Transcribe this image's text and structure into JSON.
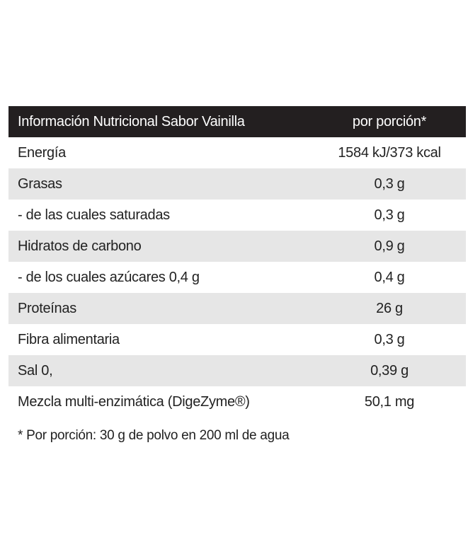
{
  "table": {
    "header": {
      "label": "Información Nutricional Sabor Vainilla",
      "value": "por porción*"
    },
    "rows": [
      {
        "label": "Energía",
        "value": "1584 kJ/373 kcal",
        "shaded": false
      },
      {
        "label": "Grasas",
        "value": "0,3 g",
        "shaded": true
      },
      {
        "label": "- de las cuales saturadas",
        "value": "0,3 g",
        "shaded": false
      },
      {
        "label": "Hidratos de carbono",
        "value": "0,9 g",
        "shaded": true
      },
      {
        "label": "- de los cuales azúcares 0,4 g",
        "value": "0,4 g",
        "shaded": false
      },
      {
        "label": "Proteínas",
        "value": "26 g",
        "shaded": true
      },
      {
        "label": "Fibra alimentaria",
        "value": "0,3 g",
        "shaded": false
      },
      {
        "label": "Sal 0,",
        "value": "0,39 g",
        "shaded": true
      },
      {
        "label": "Mezcla multi-enzimática (DigeZyme®)",
        "value": "50,1 mg",
        "shaded": false
      }
    ]
  },
  "footnote": "* Por porción: 30 g de polvo en 200 ml de agua",
  "colors": {
    "header_bg": "#231f20",
    "header_text": "#ffffff",
    "shaded_row": "#e6e6e6",
    "text": "#222222"
  }
}
